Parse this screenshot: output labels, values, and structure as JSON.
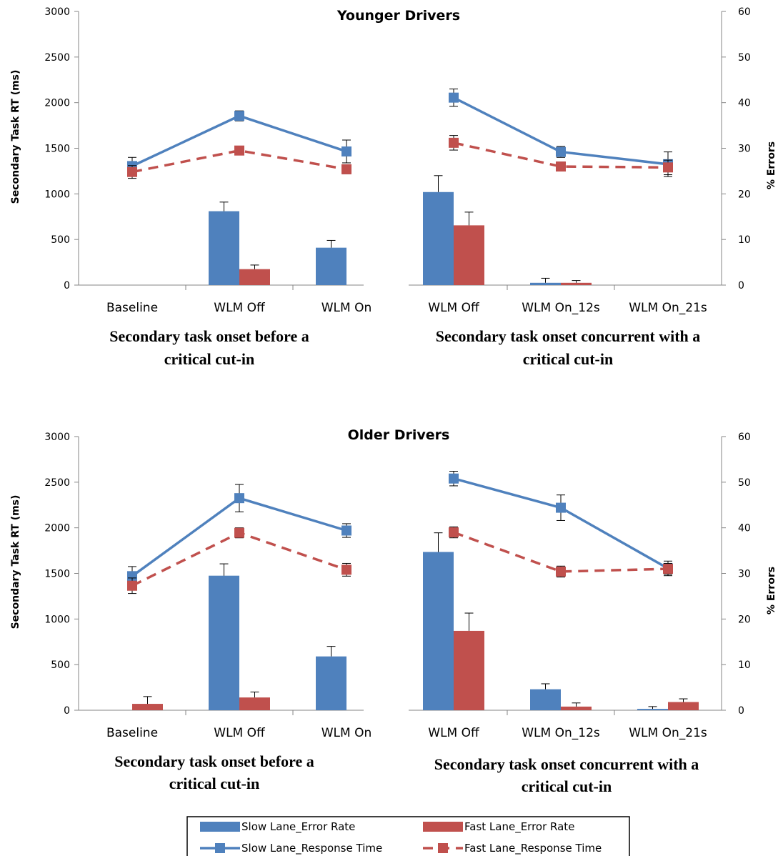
{
  "chart_data": [
    {
      "type": "bar+line",
      "title": "Younger Drivers",
      "ylabel": "Secondary Task RT (ms)",
      "y2label": "% Errors",
      "ylim": [
        0,
        3000
      ],
      "y2lim": [
        0,
        60
      ],
      "yticks": [
        "0",
        "500",
        "1000",
        "1500",
        "2000",
        "2500",
        "3000"
      ],
      "y2ticks": [
        "0",
        "10",
        "20",
        "30",
        "40",
        "50",
        "60"
      ],
      "categories": [
        "Baseline",
        "WLM Off",
        "WLM On",
        "WLM Off",
        "WLM On_12s",
        "WLM On_21s"
      ],
      "group_labels": [
        {
          "line1": "Secondary task onset before a",
          "line2": "critical cut-in"
        },
        {
          "line1": "Secondary task onset concurrent with a",
          "line2": "critical cut-in"
        }
      ],
      "bar_series": [
        {
          "name": "Slow Lane_Error Rate",
          "color": "#4F81BD",
          "values": [
            0,
            16.2,
            8.2,
            20.4,
            0.5,
            0
          ],
          "errors": [
            0,
            2.0,
            1.6,
            3.6,
            1.0,
            0
          ]
        },
        {
          "name": "Fast Lane_Error Rate",
          "color": "#C0504D",
          "values": [
            0,
            3.5,
            0,
            13.1,
            0.5,
            0
          ],
          "errors": [
            0,
            0.9,
            0,
            2.9,
            0.5,
            0
          ]
        }
      ],
      "line_series": [
        {
          "name": "Slow Lane_Response Time",
          "color": "#4F81BD",
          "values": [
            1305,
            1855,
            1465,
            2055,
            1460,
            1325
          ],
          "errors": [
            95,
            55,
            125,
            95,
            60,
            135
          ]
        },
        {
          "name": "Fast Lane_Response Time",
          "color": "#C0504D",
          "values": [
            1240,
            1475,
            1270,
            1560,
            1300,
            1290
          ],
          "errors": [
            70,
            30,
            50,
            80,
            50,
            80
          ]
        }
      ]
    },
    {
      "type": "bar+line",
      "title": "Older Drivers",
      "ylabel": "Secondary Task RT (ms)",
      "y2label": "% Errors",
      "ylim": [
        0,
        3000
      ],
      "y2lim": [
        0,
        60
      ],
      "yticks": [
        "0",
        "500",
        "1000",
        "1500",
        "2000",
        "2500",
        "3000"
      ],
      "y2ticks": [
        "0",
        "10",
        "20",
        "30",
        "40",
        "50",
        "60"
      ],
      "categories": [
        "Baseline",
        "WLM Off",
        "WLM On",
        "WLM Off",
        "WLM On_12s",
        "WLM On_21s"
      ],
      "group_labels": [
        {
          "line1": "Secondary task onset before a",
          "line2": "critical cut-in"
        },
        {
          "line1": "Secondary task onset concurrent with a",
          "line2": "critical cut-in"
        }
      ],
      "bar_series": [
        {
          "name": "Slow Lane_Error Rate",
          "color": "#4F81BD",
          "values": [
            0,
            29.5,
            11.8,
            34.7,
            4.6,
            0.3
          ],
          "errors": [
            0,
            2.6,
            2.2,
            4.2,
            1.2,
            0.5
          ]
        },
        {
          "name": "Fast Lane_Error Rate",
          "color": "#C0504D",
          "values": [
            1.4,
            2.8,
            0,
            17.4,
            0.8,
            1.8
          ],
          "errors": [
            1.6,
            1.2,
            0,
            3.9,
            0.8,
            0.7
          ]
        }
      ],
      "line_series": [
        {
          "name": "Slow Lane_Response Time",
          "color": "#4F81BD",
          "values": [
            1470,
            2325,
            1970,
            2540,
            2220,
            1555
          ],
          "errors": [
            105,
            150,
            75,
            80,
            140,
            80
          ]
        },
        {
          "name": "Fast Lane_Response Time",
          "color": "#C0504D",
          "values": [
            1365,
            1945,
            1540,
            1950,
            1520,
            1550
          ],
          "errors": [
            85,
            55,
            70,
            60,
            60,
            60
          ]
        }
      ]
    }
  ],
  "legend": [
    {
      "label": "Slow Lane_Error Rate",
      "kind": "bar",
      "color": "#4F81BD"
    },
    {
      "label": "Fast Lane_Error Rate",
      "kind": "bar",
      "color": "#C0504D"
    },
    {
      "label": "Slow Lane_Response Time",
      "kind": "line",
      "color": "#4F81BD"
    },
    {
      "label": "Fast Lane_Response Time",
      "kind": "line",
      "color": "#C0504D"
    }
  ]
}
